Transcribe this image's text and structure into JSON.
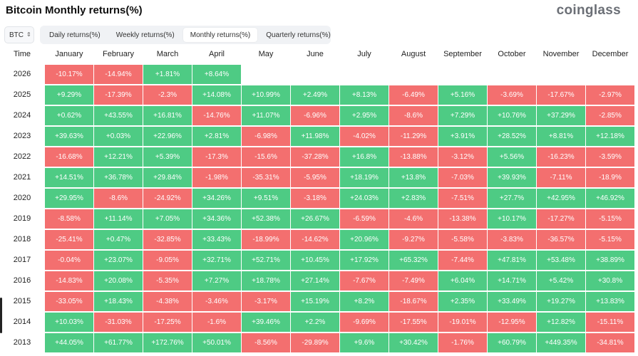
{
  "header": {
    "title": "Bitcoin Monthly returns(%)",
    "brand": "coinglass"
  },
  "controls": {
    "asset": "BTC",
    "asset_chevron": "⌃⌄",
    "tabs": [
      "Daily returns(%)",
      "Weekly returns(%)",
      "Monthly returns(%)",
      "Quarterly returns(%)"
    ],
    "active_tab": "Monthly returns(%)"
  },
  "colors": {
    "positive": "#4ecb84",
    "negative": "#f36f6f"
  },
  "chart_data": {
    "type": "table",
    "title": "Bitcoin Monthly returns(%)",
    "row_header": "Time",
    "columns": [
      "January",
      "February",
      "March",
      "April",
      "May",
      "June",
      "July",
      "August",
      "September",
      "October",
      "November",
      "December"
    ],
    "rows": [
      {
        "year": "2026",
        "values": [
          "-10.17%",
          "-14.94%",
          "+1.81%",
          "+8.64%",
          null,
          null,
          null,
          null,
          null,
          null,
          null,
          null
        ]
      },
      {
        "year": "2025",
        "values": [
          "+9.29%",
          "-17.39%",
          "-2.3%",
          "+14.08%",
          "+10.99%",
          "+2.49%",
          "+8.13%",
          "-6.49%",
          "+5.16%",
          "-3.69%",
          "-17.67%",
          "-2.97%"
        ]
      },
      {
        "year": "2024",
        "values": [
          "+0.62%",
          "+43.55%",
          "+16.81%",
          "-14.76%",
          "+11.07%",
          "-6.96%",
          "+2.95%",
          "-8.6%",
          "+7.29%",
          "+10.76%",
          "+37.29%",
          "-2.85%"
        ]
      },
      {
        "year": "2023",
        "values": [
          "+39.63%",
          "+0.03%",
          "+22.96%",
          "+2.81%",
          "-6.98%",
          "+11.98%",
          "-4.02%",
          "-11.29%",
          "+3.91%",
          "+28.52%",
          "+8.81%",
          "+12.18%"
        ]
      },
      {
        "year": "2022",
        "values": [
          "-16.68%",
          "+12.21%",
          "+5.39%",
          "-17.3%",
          "-15.6%",
          "-37.28%",
          "+16.8%",
          "-13.88%",
          "-3.12%",
          "+5.56%",
          "-16.23%",
          "-3.59%"
        ]
      },
      {
        "year": "2021",
        "values": [
          "+14.51%",
          "+36.78%",
          "+29.84%",
          "-1.98%",
          "-35.31%",
          "-5.95%",
          "+18.19%",
          "+13.8%",
          "-7.03%",
          "+39.93%",
          "-7.11%",
          "-18.9%"
        ]
      },
      {
        "year": "2020",
        "values": [
          "+29.95%",
          "-8.6%",
          "-24.92%",
          "+34.26%",
          "+9.51%",
          "-3.18%",
          "+24.03%",
          "+2.83%",
          "-7.51%",
          "+27.7%",
          "+42.95%",
          "+46.92%"
        ]
      },
      {
        "year": "2019",
        "values": [
          "-8.58%",
          "+11.14%",
          "+7.05%",
          "+34.36%",
          "+52.38%",
          "+26.67%",
          "-6.59%",
          "-4.6%",
          "-13.38%",
          "+10.17%",
          "-17.27%",
          "-5.15%"
        ]
      },
      {
        "year": "2018",
        "values": [
          "-25.41%",
          "+0.47%",
          "-32.85%",
          "+33.43%",
          "-18.99%",
          "-14.62%",
          "+20.96%",
          "-9.27%",
          "-5.58%",
          "-3.83%",
          "-36.57%",
          "-5.15%"
        ]
      },
      {
        "year": "2017",
        "values": [
          "-0.04%",
          "+23.07%",
          "-9.05%",
          "+32.71%",
          "+52.71%",
          "+10.45%",
          "+17.92%",
          "+65.32%",
          "-7.44%",
          "+47.81%",
          "+53.48%",
          "+38.89%"
        ]
      },
      {
        "year": "2016",
        "values": [
          "-14.83%",
          "+20.08%",
          "-5.35%",
          "+7.27%",
          "+18.78%",
          "+27.14%",
          "-7.67%",
          "-7.49%",
          "+6.04%",
          "+14.71%",
          "+5.42%",
          "+30.8%"
        ]
      },
      {
        "year": "2015",
        "values": [
          "-33.05%",
          "+18.43%",
          "-4.38%",
          "-3.46%",
          "-3.17%",
          "+15.19%",
          "+8.2%",
          "-18.67%",
          "+2.35%",
          "+33.49%",
          "+19.27%",
          "+13.83%"
        ]
      },
      {
        "year": "2014",
        "values": [
          "+10.03%",
          "-31.03%",
          "-17.25%",
          "-1.6%",
          "+39.46%",
          "+2.2%",
          "-9.69%",
          "-17.55%",
          "-19.01%",
          "-12.95%",
          "+12.82%",
          "-15.11%"
        ]
      },
      {
        "year": "2013",
        "values": [
          "+44.05%",
          "+61.77%",
          "+172.76%",
          "+50.01%",
          "-8.56%",
          "-29.89%",
          "+9.6%",
          "+30.42%",
          "-1.76%",
          "+60.79%",
          "+449.35%",
          "-34.81%"
        ]
      }
    ]
  }
}
